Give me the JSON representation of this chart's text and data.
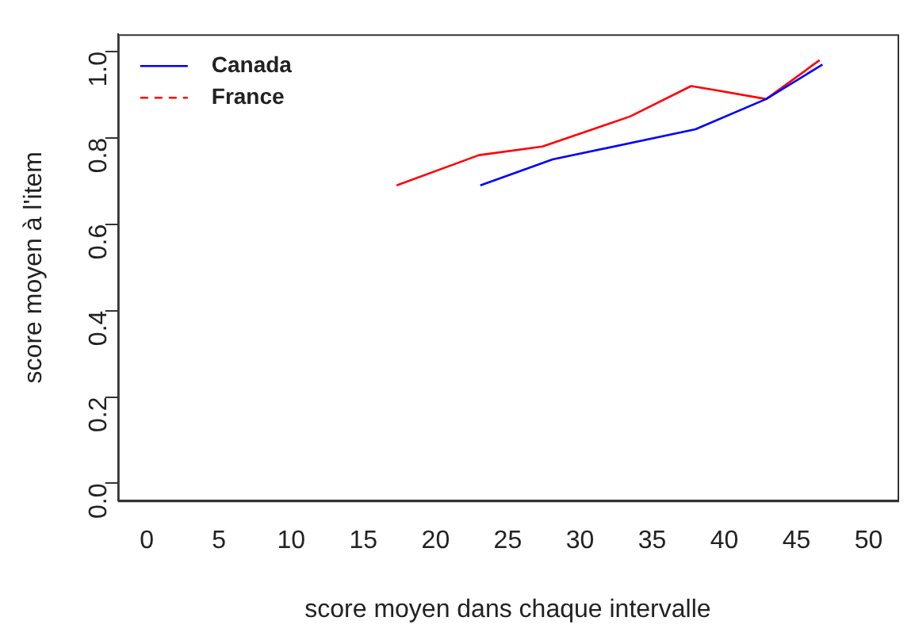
{
  "chart_data": {
    "type": "line",
    "xlabel": "score moyen dans chaque intervalle",
    "ylabel": "score moyen à l'item",
    "xlim": [
      -2,
      52
    ],
    "xticks": [
      0,
      5,
      10,
      15,
      20,
      25,
      30,
      35,
      40,
      45,
      50
    ],
    "ylim": [
      -0.04,
      1.04
    ],
    "yticks": [
      {
        "value": 0,
        "label": "0.0"
      },
      {
        "value": 0.2,
        "label": "0.2"
      },
      {
        "value": 0.4,
        "label": "0.4"
      },
      {
        "value": 0.6,
        "label": "0.6"
      },
      {
        "value": 0.8,
        "label": "0.8"
      },
      {
        "value": 1,
        "label": "1.0"
      }
    ],
    "grid": false,
    "legend": "top left",
    "marker": "none",
    "series": [
      {
        "name": "Canada",
        "color": "#0000ff",
        "x": [
          23.1,
          28.1,
          38.0,
          42.9,
          46.8
        ],
        "values": [
          0.69,
          0.75,
          0.82,
          0.89,
          0.97
        ]
      },
      {
        "name": "France",
        "color": "#ff0000",
        "x": [
          17.3,
          23.0,
          27.4,
          33.5,
          37.7,
          39.5,
          42.9,
          46.6
        ],
        "values": [
          0.69,
          0.76,
          0.78,
          0.85,
          0.92,
          0.91,
          0.89,
          0.98
        ]
      }
    ]
  }
}
